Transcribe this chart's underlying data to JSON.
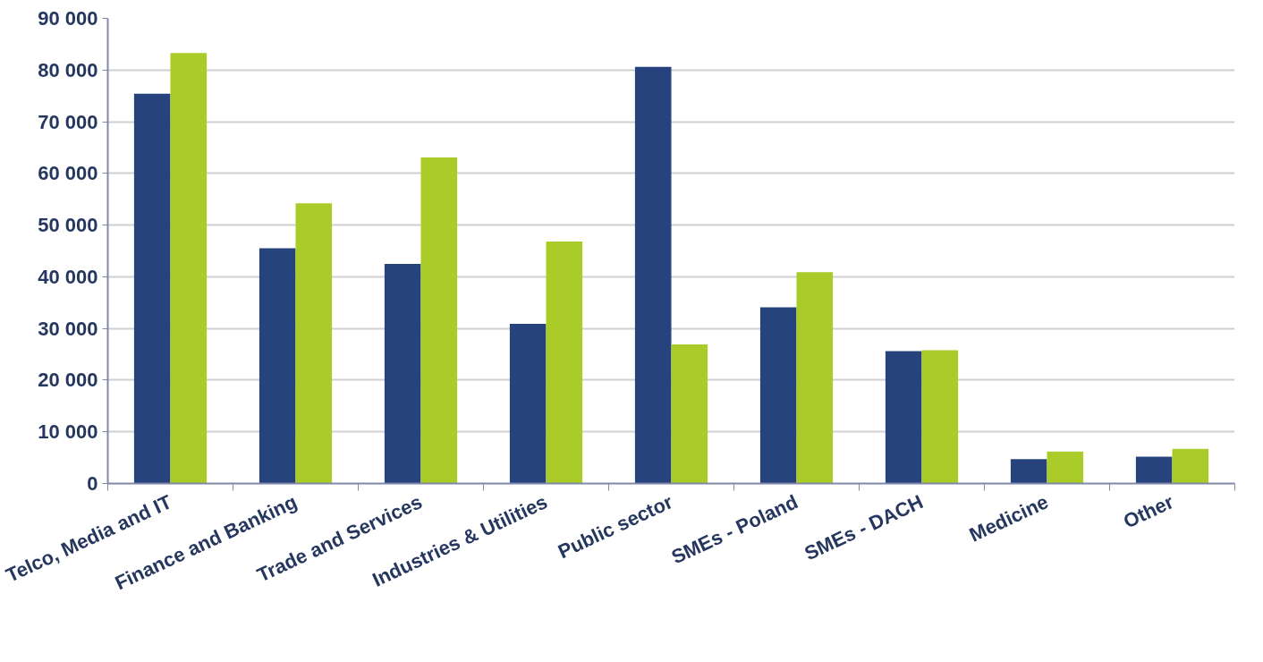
{
  "chart_data": {
    "type": "bar",
    "categories": [
      "Telco, Media and IT",
      "Finance and Banking",
      "Trade and Services",
      "Industries & Utilities",
      "Public sector",
      "SMEs - Poland",
      "SMEs - DACH",
      "Medicine",
      "Other"
    ],
    "series": [
      {
        "color": "#26437d",
        "values": [
          75400,
          45500,
          42500,
          30900,
          80600,
          34100,
          25600,
          4700,
          5200
        ]
      },
      {
        "color": "#a9cc28",
        "values": [
          83300,
          54200,
          63100,
          46800,
          26900,
          40900,
          25800,
          6200,
          6700
        ]
      }
    ],
    "ylim": [
      0,
      90000
    ],
    "yticks": [
      {
        "value": 0,
        "label": "0"
      },
      {
        "value": 10000,
        "label": "10 000"
      },
      {
        "value": 20000,
        "label": "20 000"
      },
      {
        "value": 30000,
        "label": "30 000"
      },
      {
        "value": 40000,
        "label": "40 000"
      },
      {
        "value": 50000,
        "label": "50 000"
      },
      {
        "value": 60000,
        "label": "60 000"
      },
      {
        "value": 70000,
        "label": "70 000"
      },
      {
        "value": 80000,
        "label": "80 000"
      },
      {
        "value": 90000,
        "label": "90 000"
      }
    ],
    "grid": "y"
  }
}
